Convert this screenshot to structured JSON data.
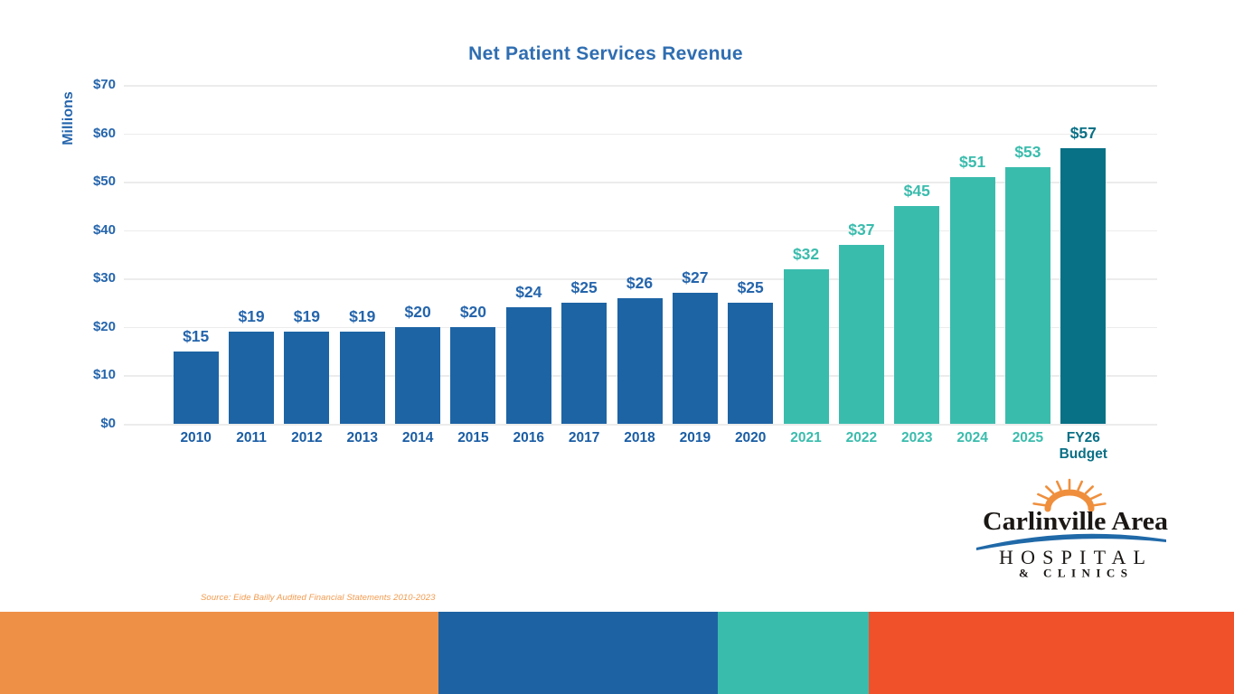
{
  "slide": {
    "title": "Net Patient Services Revenue",
    "source_note": "Source: Eide Bailly Audited Financial Statements 2010-2023"
  },
  "chart_data": {
    "type": "bar",
    "title": "Net Patient Services Revenue",
    "xlabel": "",
    "ylabel": "Millions",
    "ylim": [
      0,
      70
    ],
    "yticks": [
      0,
      10,
      20,
      30,
      40,
      50,
      60,
      70
    ],
    "ytick_labels": [
      "$0",
      "$10",
      "$20",
      "$30",
      "$40",
      "$50",
      "$60",
      "$70"
    ],
    "grid": true,
    "legend": false,
    "categories": [
      "2010",
      "2011",
      "2012",
      "2013",
      "2014",
      "2015",
      "2016",
      "2017",
      "2018",
      "2019",
      "2020",
      "2021",
      "2022",
      "2023",
      "2024",
      "2025",
      "FY26\nBudget"
    ],
    "values": [
      15,
      19,
      19,
      19,
      20,
      20,
      24,
      25,
      26,
      27,
      25,
      32,
      37,
      45,
      51,
      53,
      57
    ],
    "data_labels": [
      "$15",
      "$19",
      "$19",
      "$19",
      "$20",
      "$20",
      "$24",
      "$25",
      "$26",
      "$27",
      "$25",
      "$32",
      "$37",
      "$45",
      "$51",
      "$53",
      "$57"
    ],
    "bar_colors": [
      "#1d64a5",
      "#1d64a5",
      "#1d64a5",
      "#1d64a5",
      "#1d64a5",
      "#1d64a5",
      "#1d64a5",
      "#1d64a5",
      "#1d64a5",
      "#1d64a5",
      "#1d64a5",
      "#3abcad",
      "#3abcad",
      "#3abcad",
      "#3abcad",
      "#3abcad",
      "#087186"
    ],
    "value_label_colors": [
      "#2565ac",
      "#2565ac",
      "#2565ac",
      "#2565ac",
      "#2565ac",
      "#2565ac",
      "#2565ac",
      "#2565ac",
      "#2565ac",
      "#2565ac",
      "#2565ac",
      "#3abcad",
      "#3abcad",
      "#3abcad",
      "#3abcad",
      "#3abcad",
      "#097086"
    ],
    "category_label_colors": [
      "#1a5da4",
      "#1a5da4",
      "#1a5da4",
      "#1a5da4",
      "#1a5da4",
      "#1a5da4",
      "#1a5da4",
      "#1a5da4",
      "#1a5da4",
      "#1a5da4",
      "#1a5da4",
      "#3abcad",
      "#3abcad",
      "#3abcad",
      "#3abcad",
      "#3abcad",
      "#097086"
    ]
  },
  "colors": {
    "title_blue": "#2f6eb1",
    "axis_blue": "#2565ac",
    "gridline": "#ececec",
    "primary_blue": "#1d64a5",
    "teal": "#3abcad",
    "dark_teal": "#087186",
    "source_orange": "#f29a4d",
    "logo_orange": "#ef8f3d",
    "logo_blue": "#2069a8",
    "logo_black": "#1a1715"
  },
  "logo": {
    "line1": "Carlinville Area",
    "line2": "HOSPITAL",
    "line3": "& CLINICS"
  },
  "footer_band": {
    "segments": [
      {
        "name": "orange",
        "color": "#ef9047",
        "width_pct": 35.53
      },
      {
        "name": "blue",
        "color": "#1d63a3",
        "width_pct": 22.64
      },
      {
        "name": "teal",
        "color": "#3abcad",
        "width_pct": 12.23
      },
      {
        "name": "red-orange",
        "color": "#f0512b",
        "width_pct": 29.6
      }
    ]
  }
}
